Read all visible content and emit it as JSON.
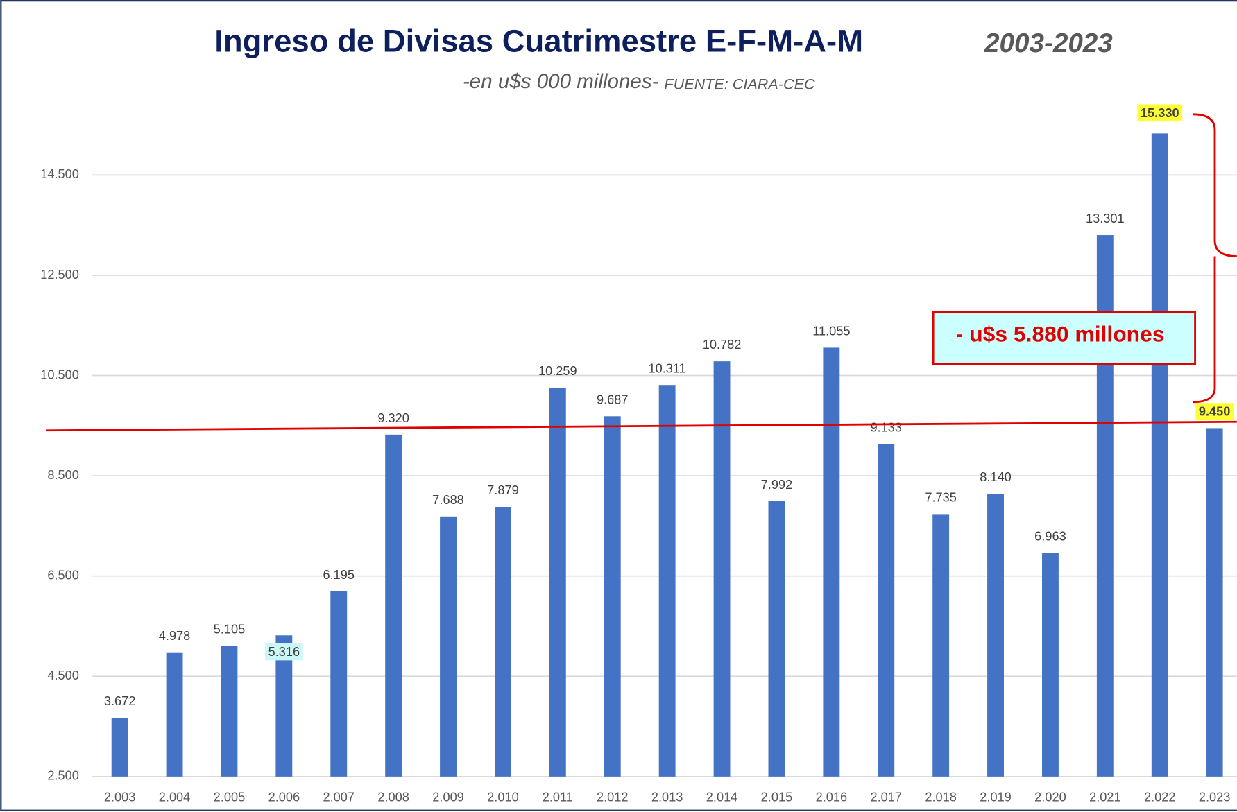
{
  "chart_data": {
    "type": "bar",
    "title": "Ingreso de Divisas Cuatrimestre E-F-M-A-M",
    "title_period": "2003-2023",
    "subtitle": "-en u$s 000 millones-",
    "source": "FUENTE: CIARA-CEC",
    "annotation": "- u$s  5.880 millones",
    "categories": [
      "2.003",
      "2.004",
      "2.005",
      "2.006",
      "2.007",
      "2.008",
      "2.009",
      "2.010",
      "2.011",
      "2.012",
      "2.013",
      "2.014",
      "2.015",
      "2.016",
      "2.017",
      "2.018",
      "2.019",
      "2.020",
      "2.021",
      "2.022",
      "2.023"
    ],
    "values": [
      3672,
      4978,
      5105,
      5316,
      6195,
      9320,
      7688,
      7879,
      10259,
      9687,
      10311,
      10782,
      7992,
      11055,
      9133,
      7735,
      8140,
      6963,
      13301,
      15330,
      9450
    ],
    "value_labels": [
      "3.672",
      "4.978",
      "5.105",
      "5.316",
      "6.195",
      "9.320",
      "7.688",
      "7.879",
      "10.259",
      "9.687",
      "10.311",
      "10.782",
      "7.992",
      "11.055",
      "9.133",
      "7.735",
      "8.140",
      "6.963",
      "13.301",
      "15.330",
      "9.450"
    ],
    "color": "#4472c4",
    "label_highlights": [
      {
        "index": 3,
        "color": "#ccf7f7"
      },
      {
        "index": 19,
        "color": "#ffff33"
      },
      {
        "index": 20,
        "color": "#ffff33"
      }
    ],
    "ylim": [
      2500,
      15500
    ],
    "yticks": [
      {
        "value": 2500,
        "label": "2.500"
      },
      {
        "value": 4500,
        "label": "4.500"
      },
      {
        "value": 6500,
        "label": "6.500"
      },
      {
        "value": 8500,
        "label": "8.500"
      },
      {
        "value": 10500,
        "label": "10.500"
      },
      {
        "value": 12500,
        "label": "12.500"
      },
      {
        "value": 14500,
        "label": "14.500"
      }
    ],
    "grid": true
  }
}
